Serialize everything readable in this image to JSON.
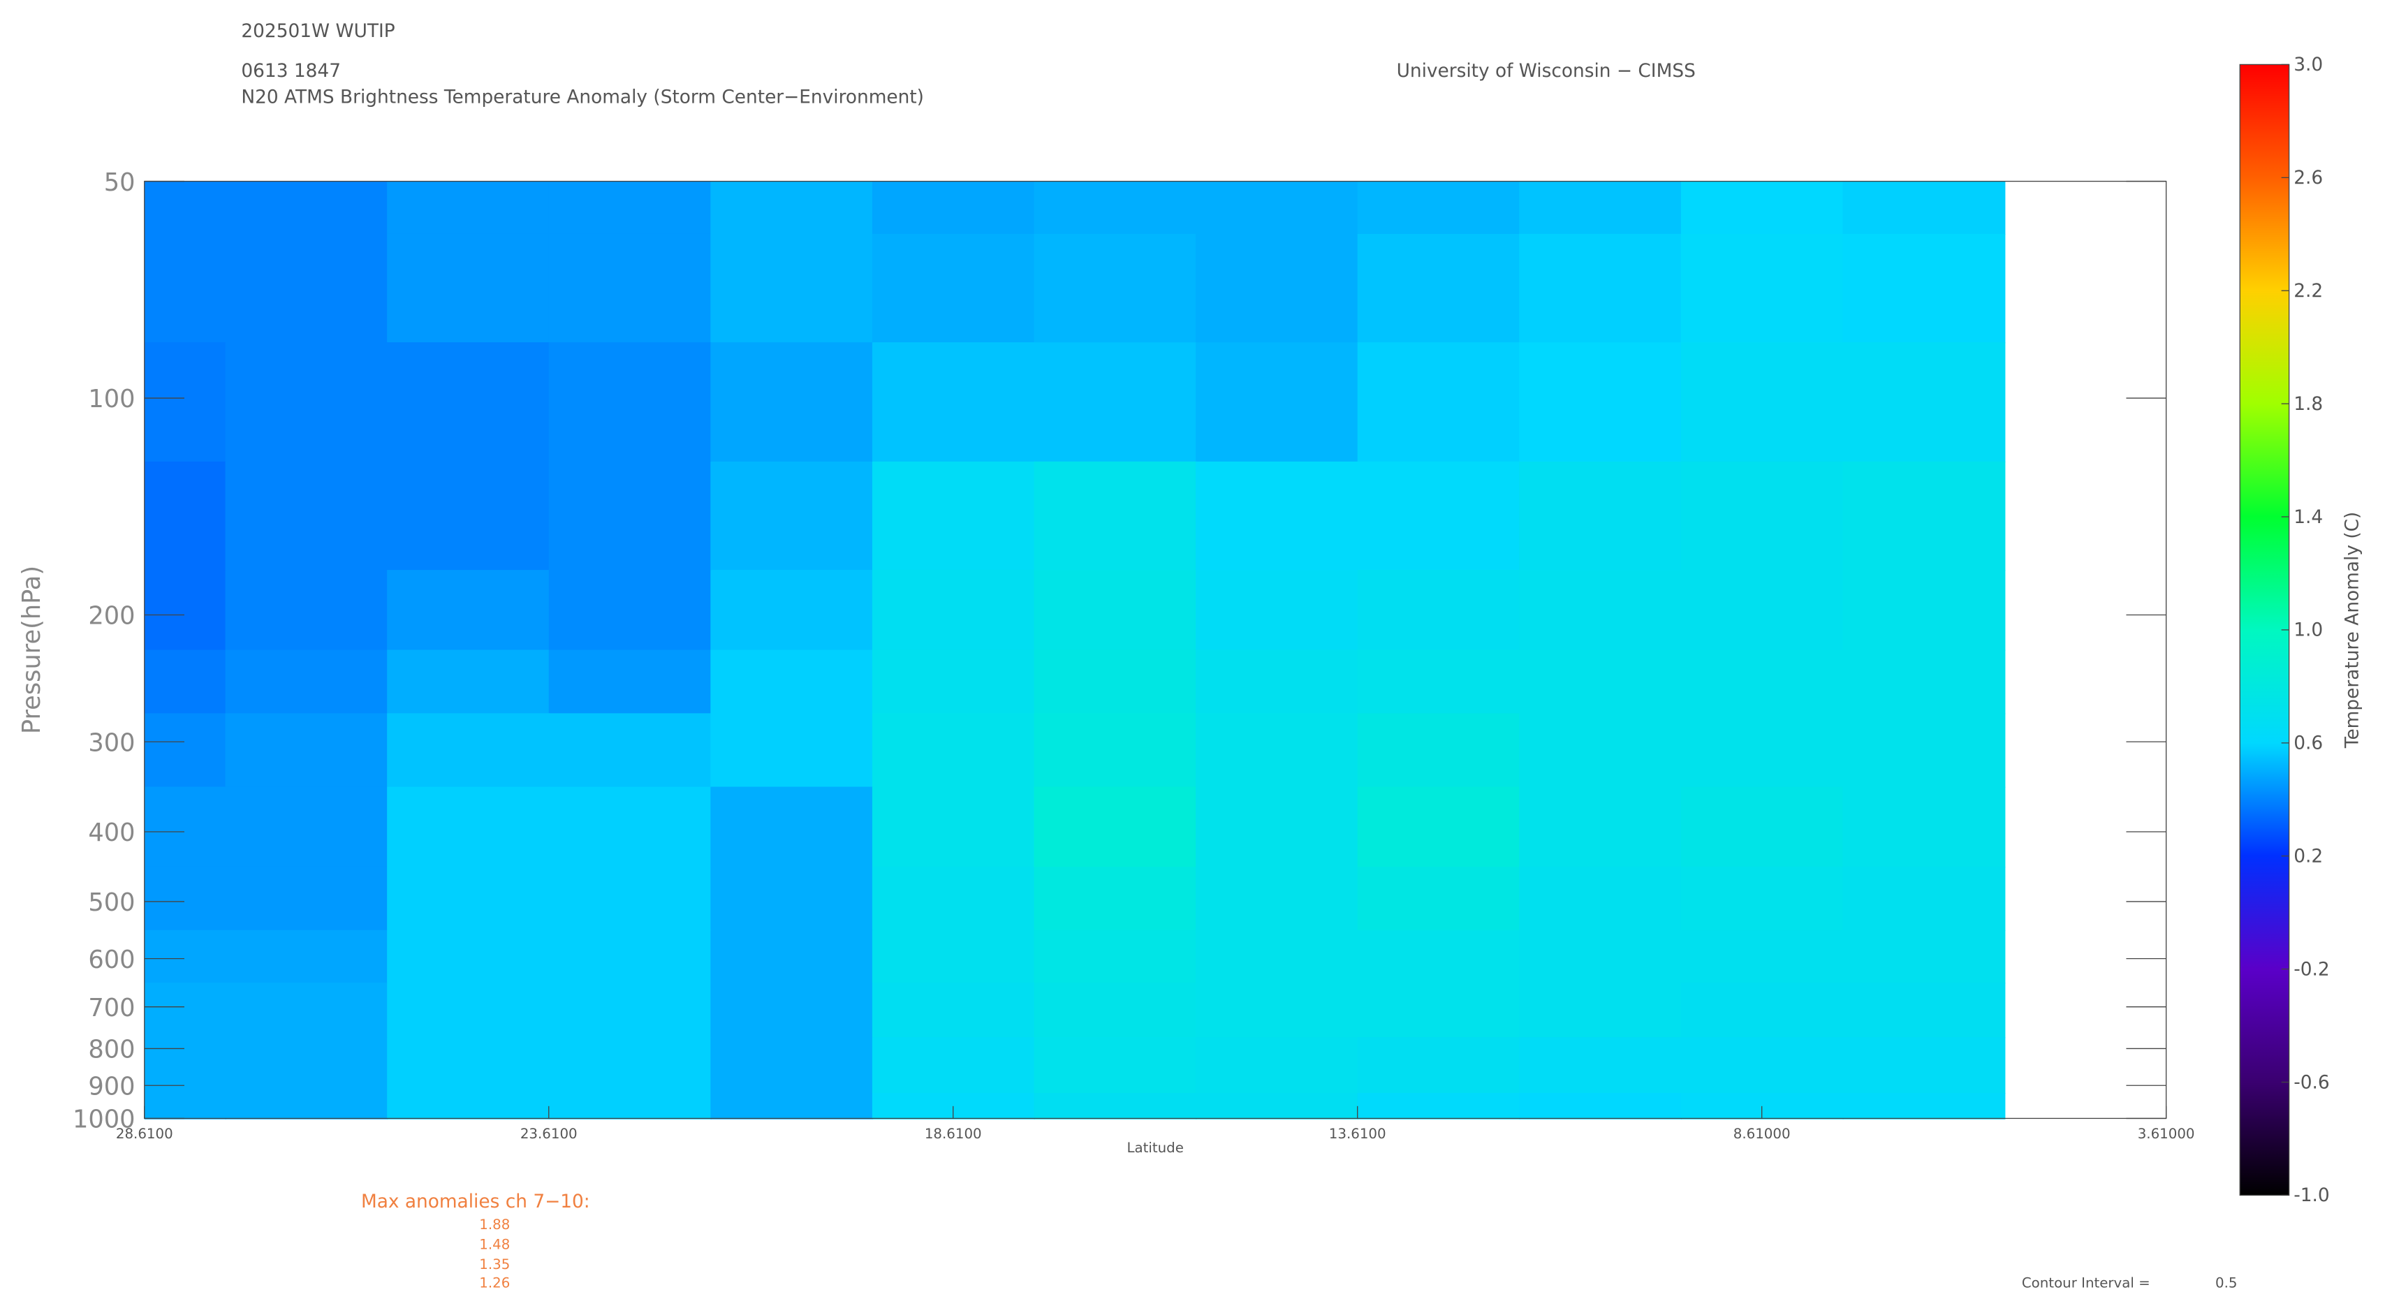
{
  "header": {
    "storm": "202501W WUTIP",
    "time": "0613 1847",
    "product": "N20 ATMS Brightness Temperature Anomaly (Storm Center−Environment)",
    "source": "University of Wisconsin − CIMSS"
  },
  "chart_data": {
    "type": "contour",
    "x_label": "Latitude",
    "y_label": "Pressure(hPa)",
    "xlim": [
      28.61,
      3.61
    ],
    "xticks": [
      {
        "value": 28.61,
        "label": "28.6100"
      },
      {
        "value": 23.61,
        "label": "23.6100"
      },
      {
        "value": 18.61,
        "label": "18.6100"
      },
      {
        "value": 13.61,
        "label": "13.6100"
      },
      {
        "value": 8.61,
        "label": "8.61000"
      },
      {
        "value": 3.61,
        "label": "3.61000"
      }
    ],
    "ylim": [
      50,
      1000
    ],
    "y_log": true,
    "y_inverted": true,
    "yticks": [
      50,
      100,
      200,
      300,
      400,
      500,
      600,
      700,
      800,
      900,
      1000
    ],
    "x": [
      28.61,
      26.61,
      24.61,
      22.61,
      20.61,
      18.61,
      16.61,
      14.61,
      12.61,
      10.61,
      8.61,
      6.61
    ],
    "y": [
      50,
      70,
      100,
      150,
      200,
      250,
      300,
      400,
      500,
      600,
      700,
      850,
      1000
    ],
    "z": [
      [
        0.4,
        0.4,
        0.45,
        0.45,
        0.52,
        0.48,
        0.5,
        0.5,
        0.52,
        0.55,
        0.6,
        0.58
      ],
      [
        0.4,
        0.4,
        0.45,
        0.45,
        0.52,
        0.5,
        0.52,
        0.5,
        0.55,
        0.58,
        0.62,
        0.6
      ],
      [
        0.38,
        0.4,
        0.4,
        0.42,
        0.48,
        0.55,
        0.55,
        0.52,
        0.58,
        0.6,
        0.65,
        0.65
      ],
      [
        0.35,
        0.4,
        0.4,
        0.42,
        0.52,
        0.65,
        0.72,
        0.62,
        0.62,
        0.68,
        0.7,
        0.72
      ],
      [
        0.35,
        0.4,
        0.45,
        0.42,
        0.55,
        0.68,
        0.75,
        0.65,
        0.68,
        0.7,
        0.7,
        0.72
      ],
      [
        0.38,
        0.42,
        0.5,
        0.45,
        0.58,
        0.7,
        0.78,
        0.7,
        0.72,
        0.72,
        0.72,
        0.72
      ],
      [
        0.42,
        0.45,
        0.55,
        0.55,
        0.58,
        0.72,
        0.8,
        0.72,
        0.78,
        0.72,
        0.72,
        0.72
      ],
      [
        0.45,
        0.45,
        0.58,
        0.58,
        0.5,
        0.72,
        0.85,
        0.72,
        0.82,
        0.72,
        0.75,
        0.72
      ],
      [
        0.45,
        0.45,
        0.58,
        0.58,
        0.5,
        0.7,
        0.8,
        0.72,
        0.78,
        0.7,
        0.72,
        0.7
      ],
      [
        0.48,
        0.48,
        0.58,
        0.58,
        0.5,
        0.7,
        0.76,
        0.72,
        0.72,
        0.7,
        0.7,
        0.7
      ],
      [
        0.5,
        0.5,
        0.58,
        0.58,
        0.5,
        0.68,
        0.74,
        0.72,
        0.72,
        0.7,
        0.68,
        0.68
      ],
      [
        0.5,
        0.5,
        0.58,
        0.58,
        0.5,
        0.65,
        0.72,
        0.7,
        0.68,
        0.65,
        0.65,
        0.65
      ],
      [
        0.5,
        0.5,
        0.58,
        0.58,
        0.5,
        0.62,
        0.68,
        0.68,
        0.62,
        0.6,
        0.62,
        0.62
      ]
    ],
    "colorbar": {
      "label": "Temperature Anomaly (C)",
      "lim": [
        -1,
        3
      ],
      "ticks": [
        {
          "value": -1,
          "label": "-1.0"
        },
        {
          "value": -0.6,
          "label": "-0.6"
        },
        {
          "value": -0.2,
          "label": "-0.2"
        },
        {
          "value": 0.2,
          "label": "0.2"
        },
        {
          "value": 0.6,
          "label": "0.6"
        },
        {
          "value": 1,
          "label": "1.0"
        },
        {
          "value": 1.4,
          "label": "1.4"
        },
        {
          "value": 1.8,
          "label": "1.8"
        },
        {
          "value": 2.2,
          "label": "2.2"
        },
        {
          "value": 2.6,
          "label": "2.6"
        },
        {
          "value": 3,
          "label": "3.0"
        }
      ],
      "colors": [
        "#000000",
        "#3a0070",
        "#5a00c8",
        "#0030ff",
        "#00d8ff",
        "#00f8c0",
        "#00ff30",
        "#a0ff00",
        "#ffd000",
        "#ff6000",
        "#ff0000"
      ]
    }
  },
  "footer": {
    "max_label": "Max anomalies ch 7−10:",
    "max_values": [
      1.88,
      1.48,
      1.35,
      1.26
    ],
    "interval_label": "Contour Interval =",
    "interval": 0.5
  }
}
